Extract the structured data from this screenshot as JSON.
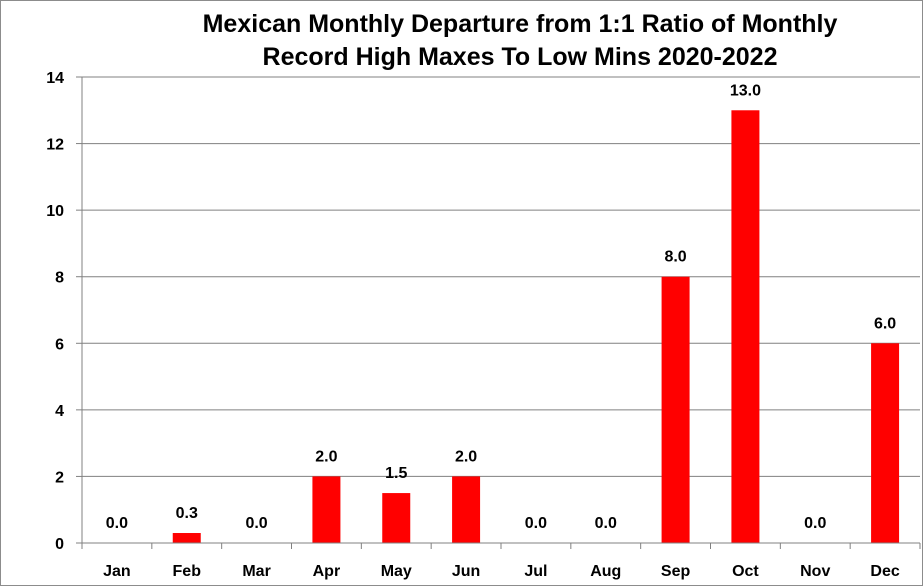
{
  "chart_data": {
    "type": "bar",
    "title_lines": [
      "Mexican Monthly Departure from 1:1 Ratio of Monthly",
      "Record High Maxes To Low Mins 2020-2022"
    ],
    "categories": [
      "Jan",
      "Feb",
      "Mar",
      "Apr",
      "May",
      "Jun",
      "Jul",
      "Aug",
      "Sep",
      "Oct",
      "Nov",
      "Dec"
    ],
    "values": [
      0.0,
      0.3,
      0.0,
      2.0,
      1.5,
      2.0,
      0.0,
      0.0,
      8.0,
      13.0,
      0.0,
      6.0
    ],
    "data_labels": [
      "0.0",
      "0.3",
      "0.0",
      "2.0",
      "1.5",
      "2.0",
      "0.0",
      "0.0",
      "8.0",
      "13.0",
      "0.0",
      "6.0"
    ],
    "ylim": [
      0,
      14
    ],
    "yticks": [
      0,
      2,
      4,
      6,
      8,
      10,
      12,
      14
    ],
    "grid": true,
    "legend": "none",
    "bar_color": "#ff0000",
    "grid_color": "#808080"
  }
}
